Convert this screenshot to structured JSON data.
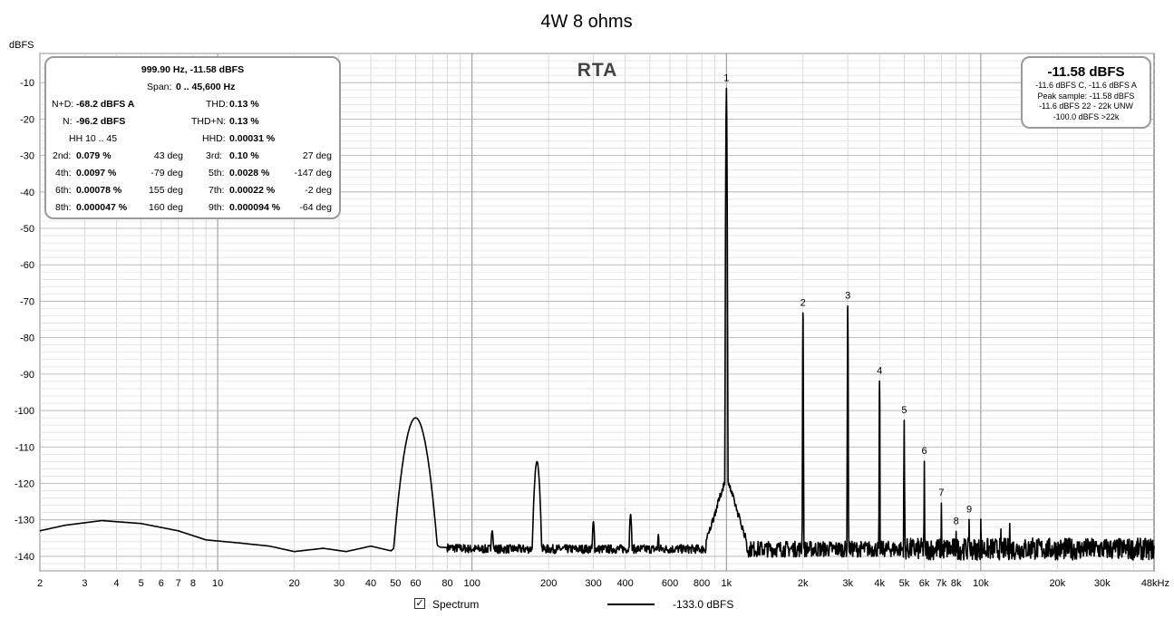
{
  "chart_data": {
    "type": "line",
    "title": "4W 8 ohms",
    "watermark": "RTA",
    "ylabel": "dBFS",
    "xlabel": "",
    "xscale": "log",
    "xlim": [
      2,
      48000
    ],
    "ylim": [
      -144,
      -2
    ],
    "grid": true,
    "y_ticks": [
      -10,
      -20,
      -30,
      -40,
      -50,
      -60,
      -70,
      -80,
      -90,
      -100,
      -110,
      -120,
      -130,
      -140
    ],
    "x_ticks": [
      {
        "f": 2,
        "label": "2"
      },
      {
        "f": 3,
        "label": "3"
      },
      {
        "f": 4,
        "label": "4"
      },
      {
        "f": 5,
        "label": "5"
      },
      {
        "f": 6,
        "label": "6"
      },
      {
        "f": 7,
        "label": "7"
      },
      {
        "f": 8,
        "label": "8"
      },
      {
        "f": 10,
        "label": "10"
      },
      {
        "f": 20,
        "label": "20"
      },
      {
        "f": 30,
        "label": "30"
      },
      {
        "f": 40,
        "label": "40"
      },
      {
        "f": 50,
        "label": "50"
      },
      {
        "f": 60,
        "label": "60"
      },
      {
        "f": 80,
        "label": "80"
      },
      {
        "f": 100,
        "label": "100"
      },
      {
        "f": 200,
        "label": "200"
      },
      {
        "f": 300,
        "label": "300"
      },
      {
        "f": 400,
        "label": "400"
      },
      {
        "f": 600,
        "label": "600"
      },
      {
        "f": 800,
        "label": "800"
      },
      {
        "f": 1000,
        "label": "1k"
      },
      {
        "f": 2000,
        "label": "2k"
      },
      {
        "f": 3000,
        "label": "3k"
      },
      {
        "f": 4000,
        "label": "4k"
      },
      {
        "f": 5000,
        "label": "5k"
      },
      {
        "f": 6000,
        "label": "6k"
      },
      {
        "f": 7000,
        "label": "7k"
      },
      {
        "f": 8000,
        "label": "8k"
      },
      {
        "f": 10000,
        "label": "10k"
      },
      {
        "f": 20000,
        "label": "20k"
      },
      {
        "f": 30000,
        "label": "30k"
      },
      {
        "f": 48000,
        "label": "48kHz"
      }
    ],
    "series": [
      {
        "label": "Spectrum",
        "noise_floor_dbfs": -138,
        "baseline": [
          [
            2,
            -133
          ],
          [
            2.5,
            -131.5
          ],
          [
            3.5,
            -130.2
          ],
          [
            5,
            -131
          ],
          [
            7,
            -133
          ],
          [
            9,
            -135.5
          ],
          [
            12,
            -136.3
          ],
          [
            16,
            -137.2
          ],
          [
            20,
            -138.7
          ],
          [
            26,
            -137.8
          ],
          [
            32,
            -138.7
          ],
          [
            40,
            -137.2
          ],
          [
            48,
            -138.5
          ],
          [
            55,
            -135
          ],
          [
            65,
            -135
          ],
          [
            75,
            -137.5
          ],
          [
            100,
            -138
          ],
          [
            1000,
            -138
          ],
          [
            48000,
            -138
          ]
        ],
        "peaks": [
          {
            "f": 60,
            "db": -102,
            "width": 0.03
          },
          {
            "f": 120,
            "db": -133,
            "width": 0.005
          },
          {
            "f": 180,
            "db": -114,
            "width": 0.008
          },
          {
            "f": 300,
            "db": -130.5,
            "width": 0.004
          },
          {
            "f": 420,
            "db": -128.5,
            "width": 0.004
          },
          {
            "f": 540,
            "db": -134,
            "width": 0.003
          },
          {
            "f": 1000,
            "db": -11.58,
            "width": 0.0012
          },
          {
            "f": 2000,
            "db": -73.2,
            "width": 0.0008
          },
          {
            "f": 3000,
            "db": -71.3,
            "width": 0.0008
          },
          {
            "f": 4000,
            "db": -91.9,
            "width": 0.0008
          },
          {
            "f": 5000,
            "db": -102.7,
            "width": 0.0008
          },
          {
            "f": 6000,
            "db": -113.9,
            "width": 0.0008
          },
          {
            "f": 7000,
            "db": -125.4,
            "width": 0.0008
          },
          {
            "f": 8000,
            "db": -133.2,
            "width": 0.0008
          },
          {
            "f": 9000,
            "db": -129.9,
            "width": 0.0008
          },
          {
            "f": 10000,
            "db": -129.8,
            "width": 0.0008
          },
          {
            "f": 12000,
            "db": -132.5,
            "width": 0.0008
          },
          {
            "f": 13000,
            "db": -131,
            "width": 0.0008
          },
          {
            "f": 16000,
            "db": -135,
            "width": 0.0008
          }
        ]
      }
    ],
    "harmonic_markers": [
      {
        "label": "1",
        "f": 1000,
        "db": -11.58
      },
      {
        "label": "2",
        "f": 2000,
        "db": -73.2
      },
      {
        "label": "3",
        "f": 3000,
        "db": -71.3
      },
      {
        "label": "4",
        "f": 4000,
        "db": -91.9
      },
      {
        "label": "5",
        "f": 5000,
        "db": -102.7
      },
      {
        "label": "6",
        "f": 6000,
        "db": -113.9
      },
      {
        "label": "7",
        "f": 7000,
        "db": -125.4
      },
      {
        "label": "8",
        "f": 8000,
        "db": -133.2
      },
      {
        "label": "9",
        "f": 9000,
        "db": -129.9
      }
    ]
  },
  "stats": {
    "header": "999.90 Hz, -11.58 dBFS",
    "span_label": "Span:",
    "span_value": "0 .. 45,600 Hz",
    "nd_label": "N+D:",
    "nd_value": "-68.2 dBFS A",
    "thd_label": "THD:",
    "thd_value": "0.13 %",
    "n_label": "N:",
    "n_value": "-96.2 dBFS",
    "thdn_label": "THD+N:",
    "thdn_value": "0.13 %",
    "hh_label": "HH 10 .. 45",
    "hhd_label": "HHD:",
    "hhd_value": "0.00031 %",
    "harmonics": [
      {
        "label": "2nd:",
        "value": "0.079 %",
        "phase": "43 deg",
        "label2": "3rd:",
        "value2": "0.10 %",
        "phase2": "27 deg"
      },
      {
        "label": "4th:",
        "value": "0.0097 %",
        "phase": "-79 deg",
        "label2": "5th:",
        "value2": "0.0028 %",
        "phase2": "-147 deg"
      },
      {
        "label": "6th:",
        "value": "0.00078 %",
        "phase": "155 deg",
        "label2": "7th:",
        "value2": "0.00022 %",
        "phase2": "-2 deg"
      },
      {
        "label": "8th:",
        "value": "0.000047 %",
        "phase": "160 deg",
        "label2": "9th:",
        "value2": "0.000094 %",
        "phase2": "-64 deg"
      }
    ]
  },
  "level": {
    "big": "-11.58 dBFS",
    "line1": "-11.6 dBFS C, -11.6 dBFS A",
    "line2": "Peak sample: -11.58 dBFS",
    "line3": "-11.6 dBFS 22 - 22k UNW",
    "line4": "-100.0 dBFS >22k"
  },
  "legend": {
    "checkbox_mark": "✓",
    "label": "Spectrum",
    "value": "-133.0 dBFS"
  }
}
